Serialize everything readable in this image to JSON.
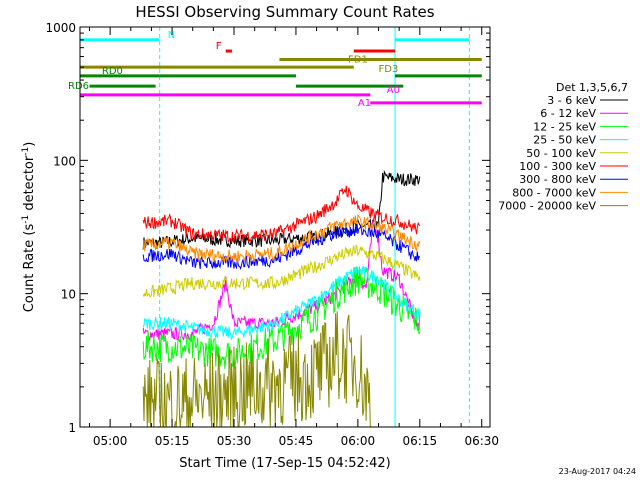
{
  "chart_data": {
    "type": "line",
    "title": "HESSI Observing Summary Count Rates",
    "xlabel": "Start Time (17-Sep-15 04:52:42)",
    "ylabel_main": "Count Rate (s",
    "ylabel_sup1": "-1",
    "ylabel_mid": " detector",
    "ylabel_sup2": "-1",
    "ylabel_end": ")",
    "y_scale": "log",
    "ylim": [
      1,
      1000
    ],
    "xlim": [
      "04:52:42",
      "06:32:00"
    ],
    "x_ticks": [
      "05:00",
      "05:15",
      "05:30",
      "05:45",
      "06:00",
      "06:15",
      "06:30"
    ],
    "y_ticks": [
      "1",
      "10",
      "100",
      "1000"
    ],
    "timestamp": "23-Aug-2017 04:24",
    "legend_title": "Det 1,3,5,6,7",
    "legend": [
      {
        "name": "3 - 6 keV",
        "color": "#000000"
      },
      {
        "name": "6 - 12 keV",
        "color": "#ff00ff"
      },
      {
        "name": "12 - 25 keV",
        "color": "#00ff00"
      },
      {
        "name": "25 - 50 keV",
        "color": "#00ffff"
      },
      {
        "name": "50 - 100 keV",
        "color": "#cccc00"
      },
      {
        "name": "100 - 300 keV",
        "color": "#ff0000"
      },
      {
        "name": "300 - 800 keV",
        "color": "#0000ff"
      },
      {
        "name": "800 - 7000 keV",
        "color": "#ff8800"
      },
      {
        "name": "7000 - 20000 keV",
        "color": "#888800"
      }
    ],
    "night_boundaries": [
      "04:52:42",
      "05:12:00",
      "06:09:00",
      "06:27:00"
    ],
    "flag_bars": [
      {
        "label": "N",
        "color": "#00ffff",
        "y": 800,
        "segments": [
          [
            "04:52:42",
            "05:12:00"
          ],
          [
            "06:09:00",
            "06:27:00"
          ]
        ]
      },
      {
        "label": "F",
        "color": "#ff0000",
        "y": 660,
        "segments": [
          [
            "05:28:00",
            "05:29:30"
          ],
          [
            "05:59:00",
            "06:09:00"
          ]
        ]
      },
      {
        "label": "FD1",
        "color": "#888800",
        "y": 570,
        "segments": [
          [
            "05:41:00",
            "06:30:00"
          ]
        ]
      },
      {
        "label": "FD3",
        "color": "#888800",
        "y": 500,
        "segments": [
          [
            "04:52:42",
            "05:59:00"
          ]
        ]
      },
      {
        "label": "RD0",
        "color": "#008800",
        "y": 430,
        "segments": [
          [
            "04:52:42",
            "05:12:00"
          ],
          [
            "05:12:00",
            "05:45:00"
          ],
          [
            "06:09:00",
            "06:30:00"
          ]
        ]
      },
      {
        "label": "RD6",
        "color": "#008800",
        "y": 360,
        "segments": [
          [
            "04:55:00",
            "05:11:00"
          ],
          [
            "05:45:00",
            "06:11:00"
          ]
        ]
      },
      {
        "label": "A0",
        "color": "#ff00ff",
        "y": 310,
        "segments": [
          [
            "04:52:42",
            "06:03:00"
          ]
        ]
      },
      {
        "label": "A1",
        "color": "#ff00ff",
        "y": 270,
        "segments": [
          [
            "06:03:00",
            "06:30:00"
          ]
        ]
      }
    ],
    "series": [
      {
        "name": "3 - 6 keV",
        "color": "#000000",
        "x": [
          "05:08",
          "05:12",
          "05:20",
          "05:30",
          "05:40",
          "05:50",
          "05:55",
          "06:00",
          "06:05",
          "06:06",
          "06:10",
          "06:14",
          "06:15"
        ],
        "values": [
          24,
          24,
          26,
          25,
          25,
          27,
          29,
          32,
          32,
          75,
          72,
          72,
          72
        ]
      },
      {
        "name": "6 - 12 keV",
        "color": "#ff00ff",
        "x": [
          "05:08",
          "05:12",
          "05:20",
          "05:25",
          "05:28",
          "05:30",
          "05:40",
          "05:50",
          "05:55",
          "06:00",
          "06:02",
          "06:04",
          "06:06",
          "06:10",
          "06:15"
        ],
        "values": [
          5,
          5,
          5,
          6,
          12,
          6,
          6,
          8,
          10,
          14,
          11,
          40,
          15,
          13,
          5
        ]
      },
      {
        "name": "12 - 25 keV",
        "color": "#00ff00",
        "x": [
          "05:08",
          "05:15",
          "05:20",
          "05:30",
          "05:40",
          "05:50",
          "05:55",
          "06:00",
          "06:05",
          "06:10",
          "06:15"
        ],
        "values": [
          4,
          4,
          3.8,
          3.5,
          4.5,
          7,
          10,
          13,
          11,
          8,
          6
        ]
      },
      {
        "name": "25 - 50 keV",
        "color": "#00ffff",
        "x": [
          "05:08",
          "05:15",
          "05:20",
          "05:30",
          "05:40",
          "05:50",
          "05:55",
          "06:00",
          "06:05",
          "06:10",
          "06:15"
        ],
        "values": [
          6,
          6,
          5.5,
          5,
          6,
          9,
          12,
          15,
          13,
          9,
          7
        ]
      },
      {
        "name": "50 - 100 keV",
        "color": "#cccc00",
        "x": [
          "05:08",
          "05:15",
          "05:20",
          "05:30",
          "05:40",
          "05:50",
          "05:55",
          "06:00",
          "06:05",
          "06:10",
          "06:15"
        ],
        "values": [
          10,
          11,
          12,
          12,
          12,
          16,
          19,
          21,
          19,
          16,
          13
        ]
      },
      {
        "name": "100 - 300 keV",
        "color": "#ff0000",
        "x": [
          "05:08",
          "05:15",
          "05:20",
          "05:30",
          "05:40",
          "05:50",
          "05:55",
          "05:57",
          "06:00",
          "06:05",
          "06:10",
          "06:15"
        ],
        "values": [
          34,
          35,
          28,
          27,
          28,
          38,
          50,
          62,
          45,
          38,
          35,
          30
        ]
      },
      {
        "name": "300 - 800 keV",
        "color": "#0000ff",
        "x": [
          "05:08",
          "05:15",
          "05:20",
          "05:30",
          "05:40",
          "05:50",
          "05:55",
          "06:00",
          "06:05",
          "06:10",
          "06:15"
        ],
        "values": [
          19,
          20,
          17,
          17,
          18,
          25,
          29,
          30,
          28,
          23,
          18
        ]
      },
      {
        "name": "800 - 7000 keV",
        "color": "#ff8800",
        "x": [
          "05:08",
          "05:15",
          "05:20",
          "05:30",
          "05:40",
          "05:50",
          "05:55",
          "06:00",
          "06:05",
          "06:10",
          "06:15"
        ],
        "values": [
          23,
          24,
          20,
          19,
          20,
          28,
          33,
          35,
          32,
          27,
          23
        ]
      },
      {
        "name": "7000 - 20000 keV",
        "color": "#888800",
        "x": [
          "05:08",
          "05:12",
          "05:16",
          "05:50",
          "05:55",
          "06:00",
          "06:03"
        ],
        "values": [
          1.5,
          1.5,
          1.5,
          2.5,
          3.5,
          3,
          1.5
        ]
      }
    ]
  }
}
